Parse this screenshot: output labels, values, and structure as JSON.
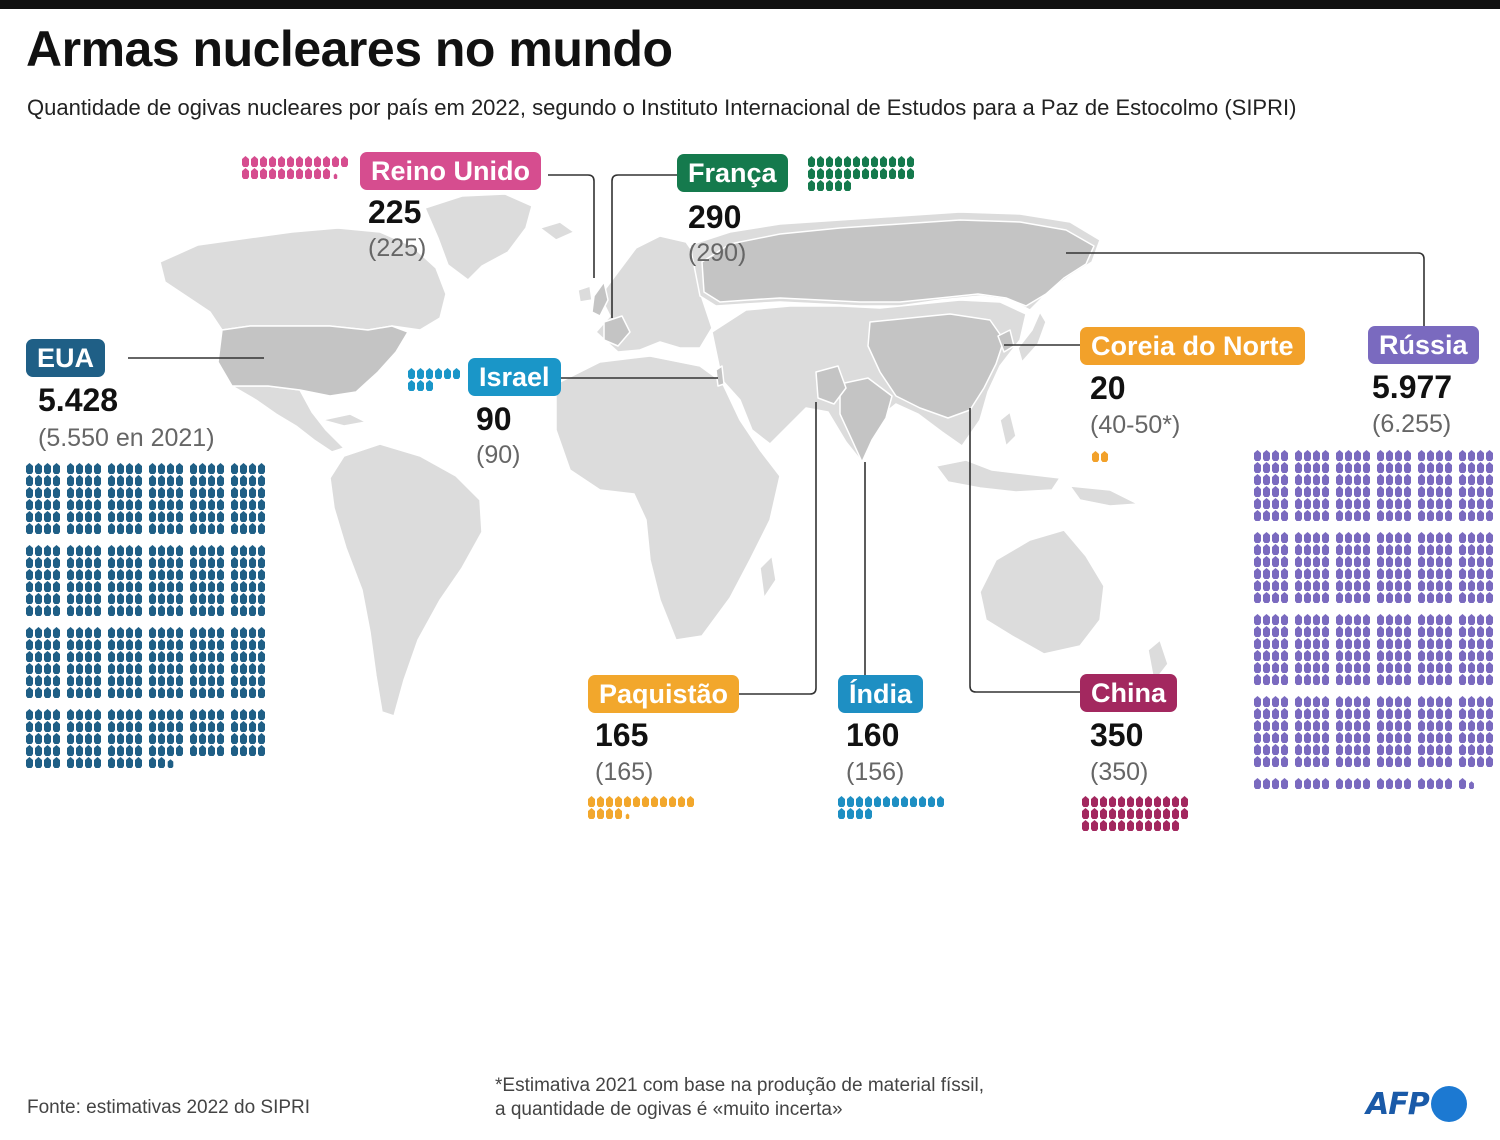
{
  "title": "Armas nucleares no mundo",
  "subtitle": "Quantidade de ogivas nucleares por país em 2022, segundo o Instituto Internacional de Estudos para a Paz de Estocolmo (SIPRI)",
  "source": "Fonte: estimativas 2022 do SIPRI",
  "footnote": {
    "line1": "*Estimativa 2021 com base na produção de material físsil,",
    "line2": "a quantidade de ogivas é «muito incerta»"
  },
  "logo": "AFP",
  "icon_unit": "warhead-icon",
  "map_colors": {
    "land": "#dcdcdc",
    "highlight": "#c4c4c4",
    "border": "#ffffff",
    "connector": "#333333"
  },
  "countries": {
    "usa": {
      "name": "EUA",
      "value": "5.428",
      "previous": "(5.550 en 2021)",
      "warheads": 5428,
      "color": "#1f5f86"
    },
    "uk": {
      "name": "Reino Unido",
      "value": "225",
      "previous": "(225)",
      "warheads": 225,
      "color": "#d64d8f"
    },
    "france": {
      "name": "França",
      "value": "290",
      "previous": "(290)",
      "warheads": 290,
      "color": "#157a4d"
    },
    "israel": {
      "name": "Israel",
      "value": "90",
      "previous": "(90)",
      "warheads": 90,
      "color": "#1a96c8"
    },
    "pakistan": {
      "name": "Paquistão",
      "value": "165",
      "previous": "(165)",
      "warheads": 165,
      "color": "#f2a72c"
    },
    "india": {
      "name": "Índia",
      "value": "160",
      "previous": "(156)",
      "warheads": 160,
      "color": "#1e8fc3"
    },
    "north_korea": {
      "name": "Coreia do Norte",
      "value": "20",
      "previous": "(40-50*)",
      "warheads": 20,
      "color": "#f2a12a"
    },
    "china": {
      "name": "China",
      "value": "350",
      "previous": "(350)",
      "warheads": 350,
      "color": "#a3285f"
    },
    "russia": {
      "name": "Rússia",
      "value": "5.977",
      "previous": "(6.255)",
      "warheads": 5977,
      "color": "#7a6abf"
    }
  }
}
